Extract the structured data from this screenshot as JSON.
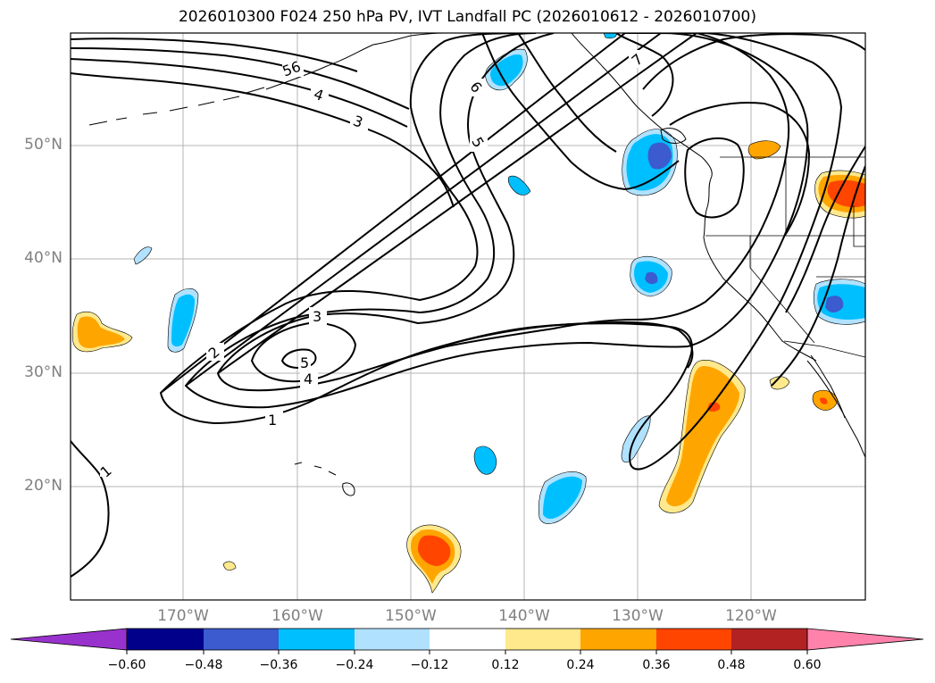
{
  "title": "2026010300 F024 250 hPa PV, IVT Landfall PC (2026010612 - 2026010700)",
  "latitude_labels": [
    "50°N",
    "40°N",
    "30°N",
    "20°N"
  ],
  "longitude_labels": [
    "170°W",
    "160°W",
    "150°W",
    "140°W",
    "130°W",
    "120°W"
  ],
  "contour_labels": [
    "1",
    "2",
    "3",
    "4",
    "5",
    "6",
    "7",
    "56",
    "4",
    "3",
    "5",
    "1"
  ],
  "colorbar": {
    "tick_labels": [
      "−0.60",
      "−0.48",
      "−0.36",
      "−0.24",
      "−0.12",
      "0.12",
      "0.24",
      "0.36",
      "0.48",
      "0.60"
    ],
    "colors": [
      "#9932cc",
      "#00008b",
      "#3b5bcf",
      "#00bfff",
      "#b0e2ff",
      "#ffffff",
      "#ffe98c",
      "#ffa500",
      "#ff4500",
      "#b22222",
      "#ff82ab"
    ]
  }
}
